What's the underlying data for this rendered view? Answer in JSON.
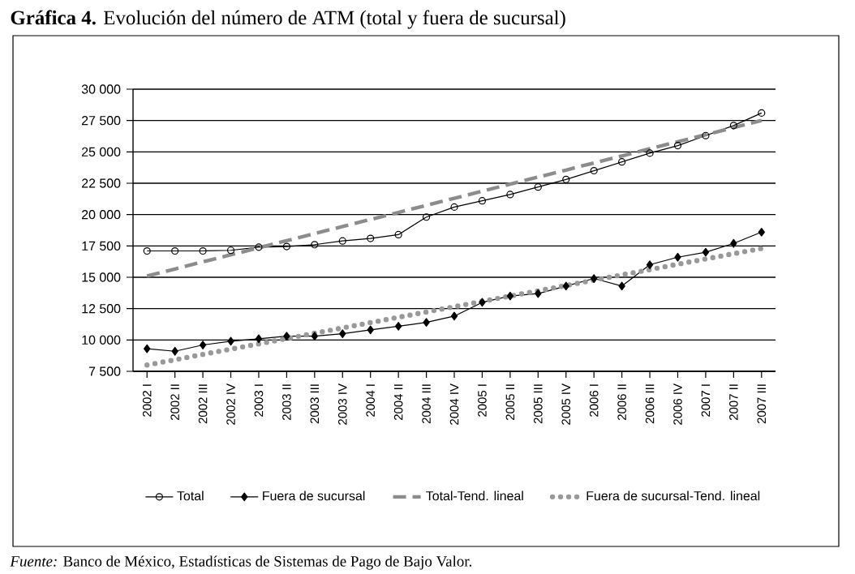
{
  "chart_data": {
    "type": "line",
    "title": "**Gráfica 4.** Evolución del número de ATM (total y fuera de sucursal)",
    "categories": [
      "2002 I",
      "2002 II",
      "2002 III",
      "2002 IV",
      "2003 I",
      "2003 II",
      "2003 III",
      "2003 IV",
      "2004 I",
      "2004 II",
      "2004 III",
      "2004 IV",
      "2005 I",
      "2005 II",
      "2005 III",
      "2005 IV",
      "2006 I",
      "2006 II",
      "2006 III",
      "2006 IV",
      "2007 I",
      "2007 II",
      "2007 III"
    ],
    "series": [
      {
        "name": "Total",
        "color": "#000000",
        "marker": "circle",
        "line_style": "solid",
        "values": [
          17100,
          17100,
          17100,
          17150,
          17400,
          17450,
          17600,
          17900,
          18100,
          18400,
          19800,
          20600,
          21100,
          21600,
          22200,
          22800,
          23500,
          24200,
          24900,
          25500,
          26300,
          27100,
          28100
        ]
      },
      {
        "name": "Fuera de sucursal",
        "color": "#000000",
        "marker": "diamond",
        "line_style": "solid",
        "values": [
          9300,
          9100,
          9600,
          9900,
          10100,
          10300,
          10300,
          10500,
          10800,
          11100,
          11400,
          11900,
          13000,
          13500,
          13700,
          14300,
          14900,
          14300,
          16000,
          16600,
          17000,
          17700,
          18600
        ]
      },
      {
        "name": "Total-Tend. lineal",
        "color": "#8c8c8c",
        "marker": "none",
        "line_style": "dashed",
        "values": [
          15100,
          15660,
          16230,
          16790,
          17350,
          17920,
          18480,
          19050,
          19610,
          20170,
          20740,
          21300,
          21860,
          22430,
          22990,
          23550,
          24120,
          24680,
          25250,
          25810,
          26370,
          26940,
          27500
        ]
      },
      {
        "name": "Fuera de sucursal-Tend. lineal",
        "color": "#999999",
        "marker": "none",
        "line_style": "dotted",
        "values": [
          8000,
          8420,
          8850,
          9270,
          9690,
          10110,
          10540,
          10960,
          11380,
          11810,
          12230,
          12650,
          13080,
          13500,
          13920,
          14340,
          14770,
          15190,
          15610,
          16040,
          16460,
          16880,
          17300
        ]
      }
    ],
    "ylim": [
      7500,
      30000
    ],
    "yticks": [
      {
        "value": 7500,
        "label": "7 500"
      },
      {
        "value": 10000,
        "label": "10 000"
      },
      {
        "value": 12500,
        "label": "12 500"
      },
      {
        "value": 15000,
        "label": "15 000"
      },
      {
        "value": 17500,
        "label": "17 500"
      },
      {
        "value": 20000,
        "label": "20 000"
      },
      {
        "value": 22500,
        "label": "22 500"
      },
      {
        "value": 25000,
        "label": "25 000"
      },
      {
        "value": 27500,
        "label": "27 500"
      },
      {
        "value": 30000,
        "label": "30 000"
      }
    ],
    "grid": "y",
    "legend": "bottom",
    "annotations": [
      "*Fuente:* Banco de México, Estadísticas de Sistemas de Pago de Bajo Valor."
    ]
  }
}
